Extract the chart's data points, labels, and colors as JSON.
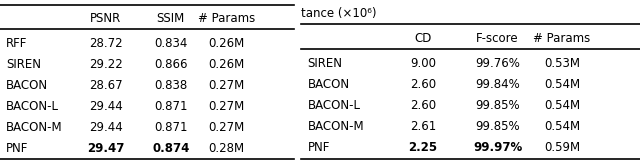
{
  "table1": {
    "header": [
      "",
      "PSNR",
      "SSIM",
      "# Params"
    ],
    "rows": [
      [
        "RFF",
        "28.72",
        "0.834",
        "0.26M"
      ],
      [
        "SIREN",
        "29.22",
        "0.866",
        "0.26M"
      ],
      [
        "BACON",
        "28.67",
        "0.838",
        "0.27M"
      ],
      [
        "BACON-L",
        "29.44",
        "0.871",
        "0.27M"
      ],
      [
        "BACON-M",
        "29.44",
        "0.871",
        "0.27M"
      ],
      [
        "PNF",
        "29.47",
        "0.874",
        "0.28M"
      ]
    ],
    "bold_row": 5,
    "bold_cols": [
      1,
      2
    ]
  },
  "table2": {
    "header": [
      "",
      "CD",
      "F-score",
      "# Params"
    ],
    "caption": "tance (×10⁶)",
    "rows": [
      [
        "SIREN",
        "9.00",
        "99.76%",
        "0.53M"
      ],
      [
        "BACON",
        "2.60",
        "99.84%",
        "0.54M"
      ],
      [
        "BACON-L",
        "2.60",
        "99.85%",
        "0.54M"
      ],
      [
        "BACON-M",
        "2.61",
        "99.85%",
        "0.54M"
      ],
      [
        "PNF",
        "2.25",
        "99.97%",
        "0.59M"
      ]
    ],
    "bold_row": 4,
    "bold_cols": [
      1,
      2
    ]
  },
  "fontsize": 8.5,
  "background_color": "#ffffff"
}
